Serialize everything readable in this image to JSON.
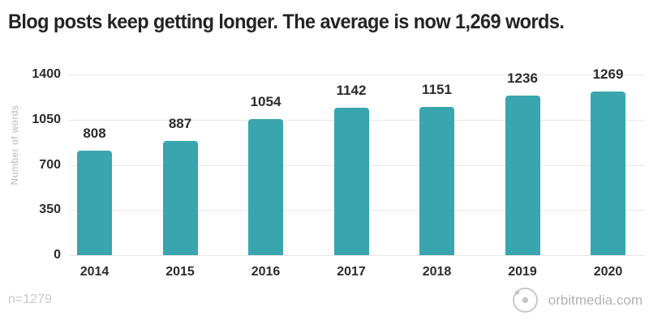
{
  "title": "Blog posts keep getting longer. The average is now 1,269 words.",
  "chart_data": {
    "type": "bar",
    "categories": [
      "2014",
      "2015",
      "2016",
      "2017",
      "2018",
      "2019",
      "2020"
    ],
    "values": [
      808,
      887,
      1054,
      1142,
      1151,
      1236,
      1269
    ],
    "title": "Blog posts keep getting longer. The average is now 1,269 words.",
    "xlabel": "",
    "ylabel": "Number of words",
    "ylim": [
      0,
      1400
    ],
    "yticks": [
      0,
      350,
      700,
      1050,
      1400
    ],
    "grid": true,
    "legend": false,
    "value_labels": true,
    "bar_color": "#39A5AE"
  },
  "footer": {
    "sample_size": "n=1279",
    "brand": "orbitmedia.com"
  },
  "icons": {
    "brand_logo": "orbit-circle-logo"
  },
  "colors": {
    "bar": "#39A5AE",
    "title_text": "#242424",
    "axis_text": "#2B2B2B",
    "muted_text": "#BDBDBD",
    "gridline": "#E7E7E7",
    "background": "#FFFFFF"
  }
}
